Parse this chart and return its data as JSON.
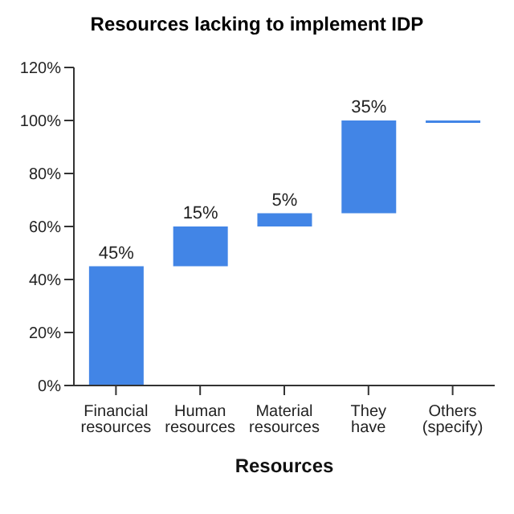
{
  "chart_data": {
    "type": "bar",
    "title": "Resources lacking to implement IDP",
    "xlabel": "Resources",
    "categories": [
      "Financial resources",
      "Human resources",
      "Material resources",
      "They have",
      "Others (specify)"
    ],
    "values": [
      45,
      15,
      5,
      35,
      0
    ],
    "base": [
      0,
      45,
      60,
      65,
      100
    ],
    "color": "#4285e6",
    "value_labels": [
      "45%",
      "15%",
      "5%",
      "35%",
      null
    ],
    "ylim": [
      0,
      120
    ],
    "yticks": [
      {
        "value": 0,
        "label": "0%"
      },
      {
        "value": 20,
        "label": "20%"
      },
      {
        "value": 40,
        "label": "40%"
      },
      {
        "value": 60,
        "label": "60%"
      },
      {
        "value": 80,
        "label": "80%"
      },
      {
        "value": 100,
        "label": "100%"
      },
      {
        "value": 120,
        "label": "120%"
      }
    ],
    "grid": false
  }
}
